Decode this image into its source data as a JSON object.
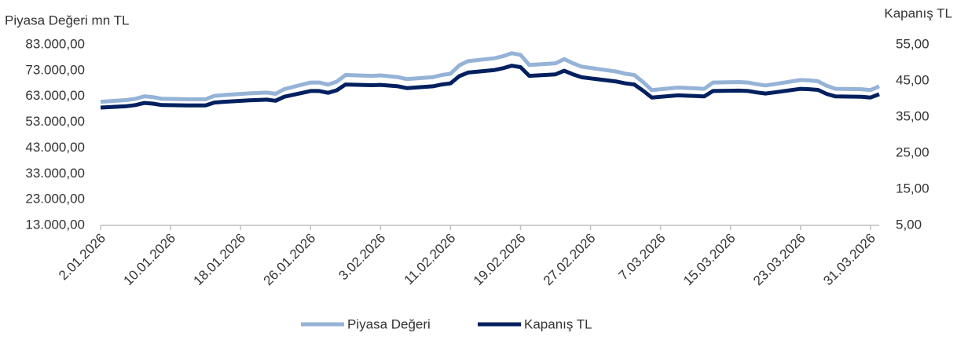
{
  "chart_data": {
    "type": "line",
    "y_label": "Piyasa Değeri mn TL",
    "y2_label": "Kapanış TL",
    "x": [
      "2.01.2026",
      "5.01.2026",
      "6.01.2026",
      "7.01.2026",
      "8.01.2026",
      "9.01.2026",
      "12.01.2026",
      "13.01.2026",
      "14.01.2026",
      "15.01.2026",
      "16.01.2026",
      "19.01.2026",
      "20.01.2026",
      "21.01.2026",
      "22.01.2026",
      "23.01.2026",
      "26.01.2026",
      "27.01.2026",
      "28.01.2026",
      "29.01.2026",
      "30.01.2026",
      "2.02.2026",
      "3.02.2026",
      "4.02.2026",
      "5.02.2026",
      "6.02.2026",
      "9.02.2026",
      "10.02.2026",
      "11.02.2026",
      "12.02.2026",
      "13.02.2026",
      "16.02.2026",
      "17.02.2026",
      "18.02.2026",
      "19.02.2026",
      "20.02.2026",
      "23.02.2026",
      "24.02.2026",
      "25.02.2026",
      "26.02.2026",
      "27.02.2026",
      "2.03.2026",
      "3.03.2026",
      "4.03.2026",
      "5.03.2026",
      "6.03.2026",
      "9.03.2026",
      "10.03.2026",
      "11.03.2026",
      "12.03.2026",
      "13.03.2026",
      "16.03.2026",
      "17.03.2026",
      "18.03.2026",
      "19.03.2026",
      "20.03.2026",
      "23.03.2026",
      "24.03.2026",
      "25.03.2026",
      "26.03.2026",
      "27.03.2026",
      "30.03.2026",
      "31.03.2026",
      "1.04.2026"
    ],
    "xlim": [
      "2.01.2026",
      "1.04.2026"
    ],
    "xticks": [
      "2.01.2026",
      "10.01.2026",
      "18.01.2026",
      "26.01.2026",
      "3.02.2026",
      "11.02.2026",
      "19.02.2026",
      "27.02.2026",
      "7.03.2026",
      "15.03.2026",
      "23.03.2026",
      "31.03.2026"
    ],
    "series": [
      {
        "name": "Piyasa Değeri",
        "color": "#95b3d7",
        "axis": "y",
        "values": [
          60910,
          61560,
          62050,
          63020,
          62690,
          62050,
          61880,
          61880,
          61880,
          63180,
          63500,
          64150,
          64310,
          64480,
          63990,
          65770,
          68360,
          68360,
          67550,
          68690,
          71280,
          70960,
          71120,
          70790,
          70470,
          69660,
          70470,
          71280,
          71770,
          75010,
          76630,
          77760,
          78570,
          79700,
          79060,
          75170,
          75820,
          77440,
          75820,
          74520,
          74030,
          72580,
          71770,
          71280,
          68530,
          65450,
          66420,
          66260,
          66100,
          65930,
          68360,
          68530,
          68360,
          67720,
          67230,
          67720,
          69340,
          69170,
          68850,
          67070,
          65930,
          65770,
          65450,
          66910
        ]
      },
      {
        "name": "Kapanış TL",
        "color": "#002060",
        "axis": "y2",
        "values": [
          37.6,
          38.0,
          38.3,
          38.9,
          38.7,
          38.3,
          38.2,
          38.2,
          38.2,
          39.0,
          39.2,
          39.6,
          39.7,
          39.8,
          39.5,
          40.6,
          42.2,
          42.2,
          41.7,
          42.4,
          44.0,
          43.8,
          43.9,
          43.7,
          43.5,
          43.0,
          43.5,
          44.0,
          44.3,
          46.3,
          47.3,
          48.0,
          48.5,
          49.2,
          48.8,
          46.4,
          46.8,
          47.8,
          46.8,
          46.0,
          45.7,
          44.8,
          44.3,
          44.0,
          42.3,
          40.4,
          41.0,
          40.9,
          40.8,
          40.7,
          42.2,
          42.3,
          42.2,
          41.8,
          41.5,
          41.8,
          42.8,
          42.7,
          42.5,
          41.4,
          40.7,
          40.6,
          40.4,
          41.3
        ]
      }
    ],
    "ylim": [
      13000,
      83000
    ],
    "yticks": [
      {
        "value": 13000,
        "label": "13.000,00"
      },
      {
        "value": 23000,
        "label": "23.000,00"
      },
      {
        "value": 33000,
        "label": "33.000,00"
      },
      {
        "value": 43000,
        "label": "43.000,00"
      },
      {
        "value": 53000,
        "label": "53.000,00"
      },
      {
        "value": 63000,
        "label": "63.000,00"
      },
      {
        "value": 73000,
        "label": "73.000,00"
      },
      {
        "value": 83000,
        "label": "83.000,00"
      }
    ],
    "y2lim": [
      5,
      55
    ],
    "y2ticks": [
      {
        "value": 5,
        "label": "5,00"
      },
      {
        "value": 15,
        "label": "15,00"
      },
      {
        "value": 25,
        "label": "25,00"
      },
      {
        "value": 35,
        "label": "35,00"
      },
      {
        "value": 45,
        "label": "45,00"
      },
      {
        "value": 55,
        "label": "55,00"
      }
    ],
    "grid": false,
    "legend": "bottom"
  }
}
